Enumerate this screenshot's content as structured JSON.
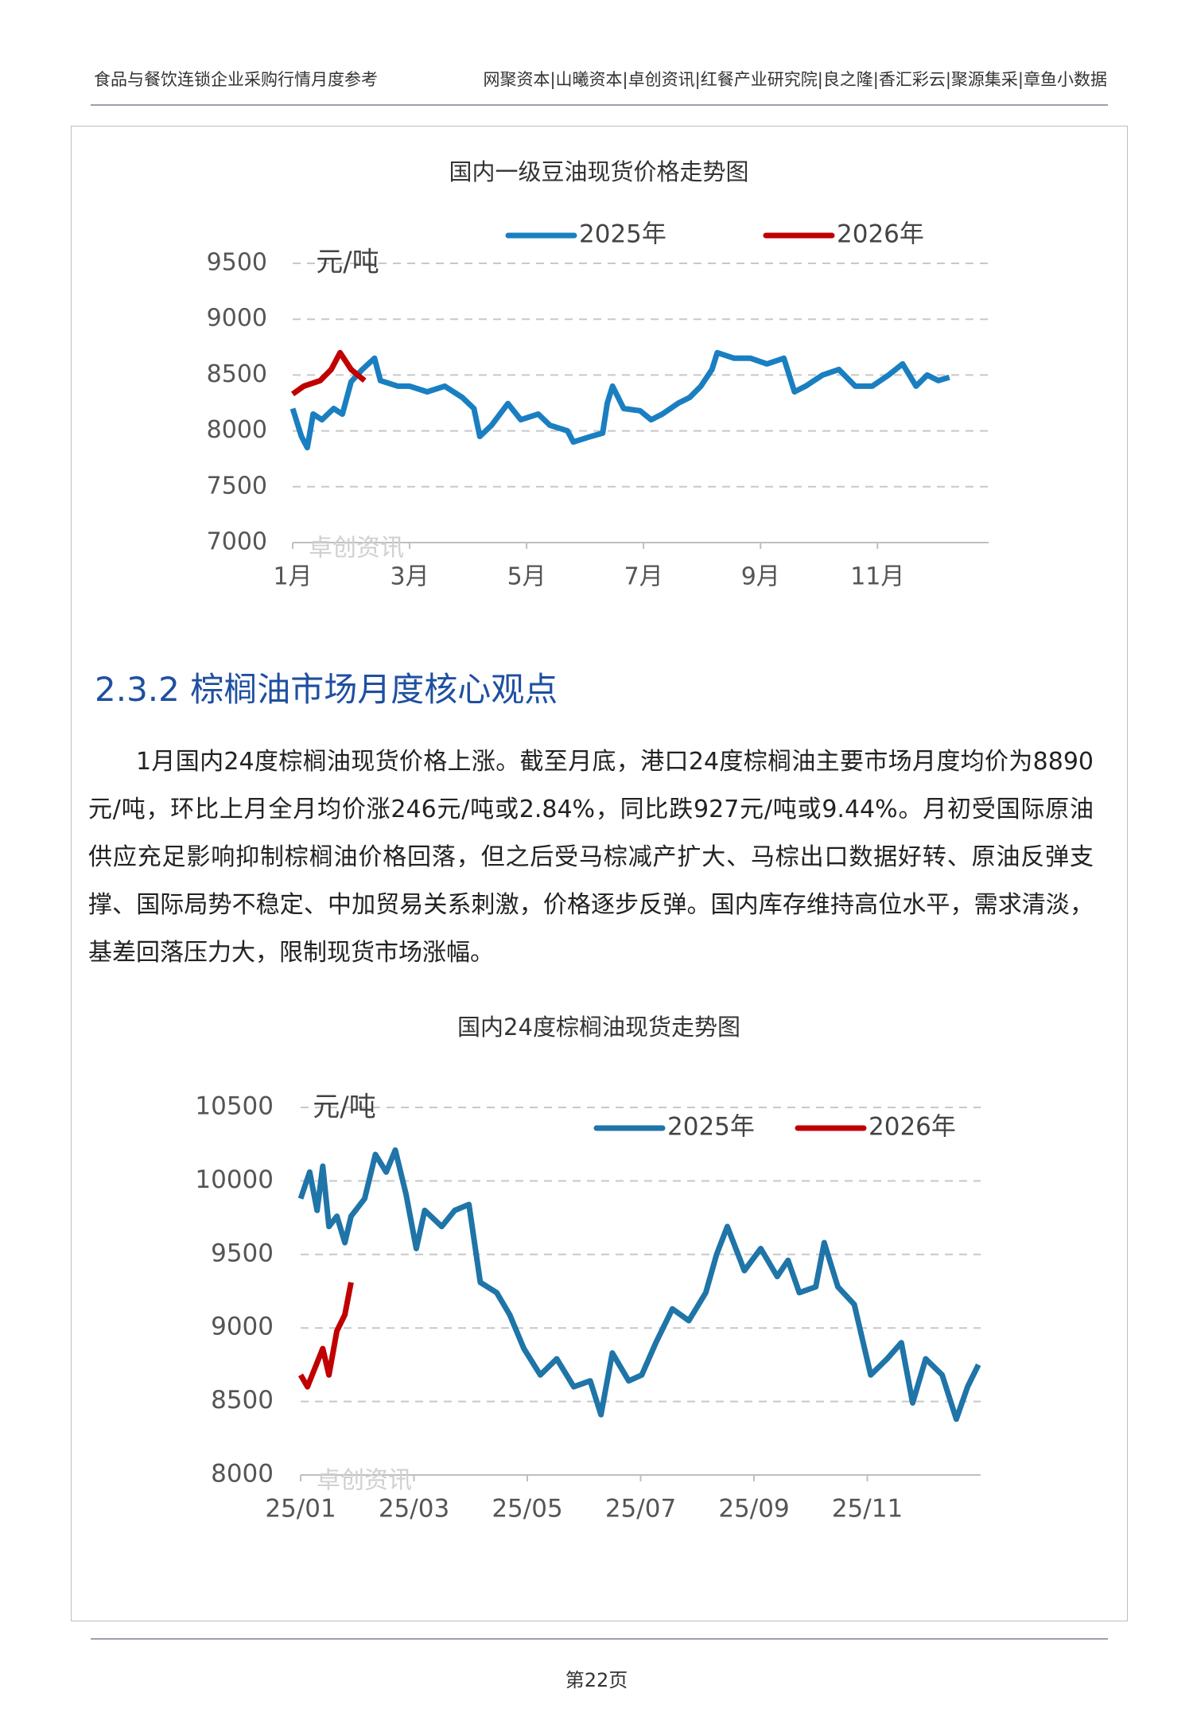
{
  "header": {
    "left": "食品与餐饮连锁企业采购行情月度参考",
    "right": "网聚资本|山曦资本|卓创资讯|红餐产业研究院|良之隆|香汇彩云|聚源集采|章鱼小数据"
  },
  "chart_data": [
    {
      "type": "line",
      "title": "国内一级豆油现货价格走势图",
      "unit": "元/吨",
      "watermark": "卓创资讯",
      "xlim": [
        1,
        12.9
      ],
      "xticks": [
        {
          "value": 1,
          "label": "1月"
        },
        {
          "value": 3,
          "label": "3月"
        },
        {
          "value": 5,
          "label": "5月"
        },
        {
          "value": 7,
          "label": "7月"
        },
        {
          "value": 9,
          "label": "9月"
        },
        {
          "value": 11,
          "label": "11月"
        }
      ],
      "ylim": [
        7000,
        9500
      ],
      "yticks": [
        7000,
        7500,
        8000,
        8500,
        9000,
        9500
      ],
      "grid": true,
      "series": [
        {
          "name": "2025年",
          "color": "#1a7fc1",
          "x": [
            1.0,
            1.15,
            1.25,
            1.35,
            1.5,
            1.7,
            1.85,
            2.0,
            2.19,
            2.4,
            2.5,
            2.8,
            3.0,
            3.3,
            3.6,
            3.9,
            4.1,
            4.2,
            4.4,
            4.68,
            4.9,
            5.2,
            5.4,
            5.7,
            5.8,
            6.1,
            6.3,
            6.38,
            6.47,
            6.66,
            6.94,
            7.13,
            7.32,
            7.6,
            7.79,
            7.98,
            8.17,
            8.26,
            8.55,
            8.83,
            9.11,
            9.4,
            9.58,
            9.77,
            10.06,
            10.34,
            10.62,
            10.91,
            11.19,
            11.43,
            11.66,
            11.85,
            12.04,
            12.23
          ],
          "values": [
            8200,
            7950,
            7850,
            8150,
            8100,
            8200,
            8150,
            8440,
            8550,
            8650,
            8450,
            8400,
            8400,
            8350,
            8400,
            8300,
            8200,
            7950,
            8050,
            8245,
            8100,
            8150,
            8050,
            8000,
            7900,
            7950,
            7980,
            8250,
            8400,
            8200,
            8180,
            8100,
            8150,
            8250,
            8300,
            8400,
            8550,
            8700,
            8650,
            8650,
            8600,
            8650,
            8350,
            8400,
            8500,
            8550,
            8400,
            8400,
            8500,
            8600,
            8400,
            8500,
            8450,
            8480
          ]
        },
        {
          "name": "2026年",
          "color": "#c00000",
          "x": [
            1.0,
            1.19,
            1.47,
            1.66,
            1.81,
            2.0,
            2.23
          ],
          "values": [
            8330,
            8400,
            8450,
            8550,
            8700,
            8550,
            8450
          ]
        }
      ]
    },
    {
      "type": "line",
      "title": "国内24度棕榈油现货走势图",
      "unit": "元/吨",
      "watermark": "卓创资讯",
      "xlim": [
        1,
        13
      ],
      "xticks": [
        {
          "value": 1,
          "label": "25/01"
        },
        {
          "value": 3,
          "label": "25/03"
        },
        {
          "value": 5,
          "label": "25/05"
        },
        {
          "value": 7,
          "label": "25/07"
        },
        {
          "value": 9,
          "label": "25/09"
        },
        {
          "value": 11,
          "label": "25/11"
        }
      ],
      "ylim": [
        8000,
        10500
      ],
      "yticks": [
        8000,
        8500,
        9000,
        9500,
        10000,
        10500
      ],
      "grid": true,
      "series": [
        {
          "name": "2025年",
          "color": "#1f74a8",
          "x": [
            1.0,
            1.16,
            1.29,
            1.39,
            1.5,
            1.64,
            1.78,
            1.89,
            2.13,
            2.32,
            2.51,
            2.67,
            2.86,
            3.04,
            3.19,
            3.49,
            3.72,
            3.97,
            4.17,
            4.46,
            4.69,
            4.94,
            5.23,
            5.52,
            5.82,
            6.11,
            6.3,
            6.5,
            6.79,
            7.02,
            7.27,
            7.56,
            7.85,
            8.15,
            8.34,
            8.53,
            8.83,
            9.12,
            9.41,
            9.6,
            9.8,
            10.09,
            10.24,
            10.48,
            10.77,
            11.06,
            11.35,
            11.6,
            11.8,
            12.03,
            12.32,
            12.57,
            12.77,
            12.96
          ],
          "values": [
            9880,
            10060,
            9800,
            10100,
            9690,
            9760,
            9580,
            9760,
            9880,
            10180,
            10060,
            10210,
            9910,
            9540,
            9800,
            9690,
            9800,
            9840,
            9310,
            9240,
            9090,
            8860,
            8680,
            8790,
            8600,
            8640,
            8410,
            8830,
            8640,
            8680,
            8900,
            9130,
            9050,
            9240,
            9500,
            9690,
            9390,
            9540,
            9350,
            9460,
            9240,
            9280,
            9580,
            9280,
            9160,
            8680,
            8790,
            8900,
            8490,
            8790,
            8680,
            8380,
            8600,
            8750
          ]
        },
        {
          "name": "2026年",
          "color": "#c00000",
          "x": [
            1.0,
            1.12,
            1.39,
            1.5,
            1.64,
            1.78,
            1.89
          ],
          "values": [
            8680,
            8600,
            8860,
            8680,
            8980,
            9090,
            9310
          ]
        }
      ]
    }
  ],
  "section": {
    "heading": "2.3.2 棕榈油市场月度核心观点",
    "paragraph": "1月国内24度棕榈油现货价格上涨。截至月底，港口24度棕榈油主要市场月度均价为8890元/吨，环比上月全月均价涨246元/吨或2.84%，同比跌927元/吨或9.44%。月初受国际原油供应充足影响抑制棕榈油价格回落，但之后受马棕减产扩大、马棕出口数据好转、原油反弹支撑、国际局势不稳定、中加贸易关系刺激，价格逐步反弹。国内库存维持高位水平，需求清淡，基差回落压力大，限制现货市场涨幅。"
  },
  "footer": {
    "page": "第22页"
  }
}
